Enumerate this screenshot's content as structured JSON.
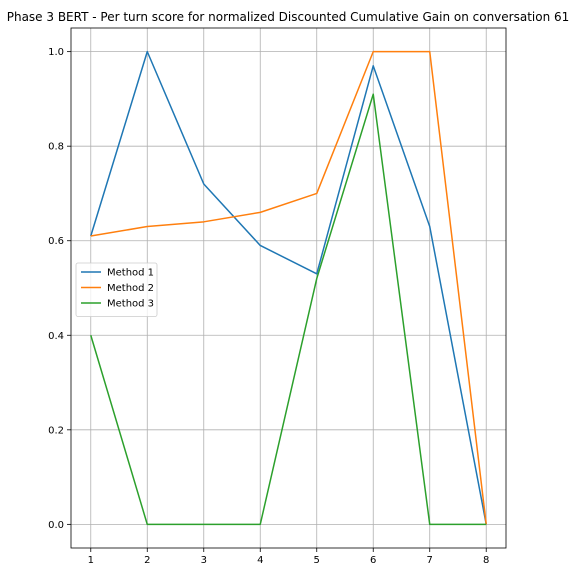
{
  "chart_data": {
    "type": "line",
    "title": "Phase 3 BERT - Per turn score for normalized Discounted Cumulative Gain on conversation 61",
    "xlabel": "",
    "ylabel": "",
    "x": [
      1,
      2,
      3,
      4,
      5,
      6,
      7,
      8
    ],
    "xlim": [
      0.65,
      8.35
    ],
    "ylim": [
      -0.05,
      1.05
    ],
    "xticks": [
      1,
      2,
      3,
      4,
      5,
      6,
      7,
      8
    ],
    "xtick_labels": [
      "1",
      "2",
      "3",
      "4",
      "5",
      "6",
      "7",
      "8"
    ],
    "yticks": [
      0.0,
      0.2,
      0.4,
      0.6,
      0.8,
      1.0
    ],
    "ytick_labels": [
      "0.0",
      "0.2",
      "0.4",
      "0.6",
      "0.8",
      "1.0"
    ],
    "grid": true,
    "legend_position": "center-left",
    "series": [
      {
        "name": "Method 1",
        "color": "#1f77b4",
        "values": [
          0.61,
          1.0,
          0.72,
          0.59,
          0.53,
          0.97,
          0.63,
          0.0
        ]
      },
      {
        "name": "Method 2",
        "color": "#ff7f0e",
        "values": [
          0.61,
          0.63,
          0.64,
          0.66,
          0.7,
          1.0,
          1.0,
          0.0
        ]
      },
      {
        "name": "Method 3",
        "color": "#2ca02c",
        "values": [
          0.4,
          0.0,
          0.0,
          0.0,
          0.52,
          0.91,
          0.0,
          0.0
        ]
      }
    ]
  }
}
